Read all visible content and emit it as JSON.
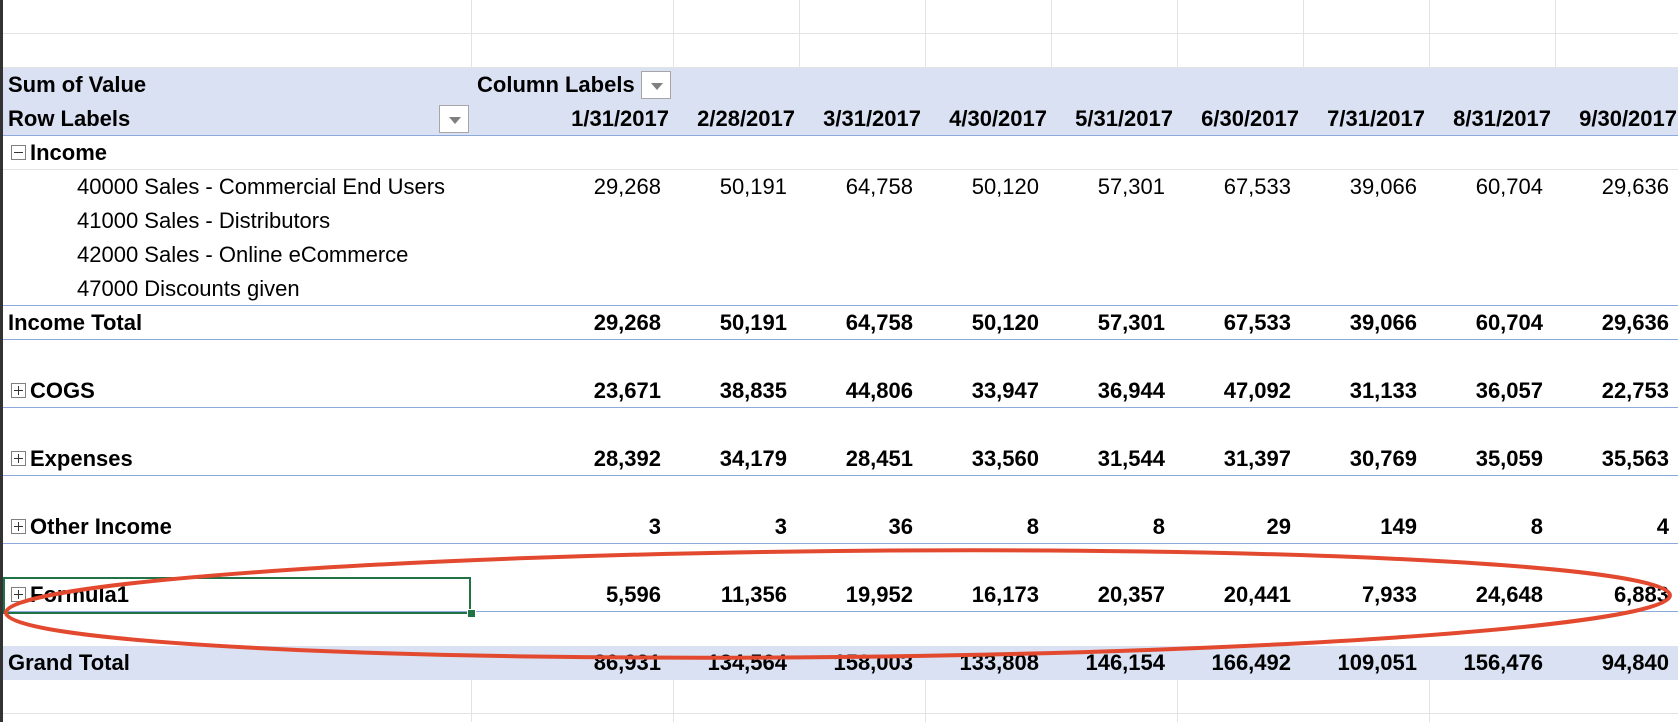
{
  "pivot": {
    "header": {
      "sum_label": "Sum of Value",
      "column_labels": "Column Labels",
      "row_labels": "Row Labels",
      "dates": [
        "1/31/2017",
        "2/28/2017",
        "3/31/2017",
        "4/30/2017",
        "5/31/2017",
        "6/30/2017",
        "7/31/2017",
        "8/31/2017",
        "9/30/2017"
      ]
    },
    "income": {
      "label": "Income",
      "children": [
        {
          "label": "40000 Sales - Commercial End Users",
          "values": [
            "29,268",
            "50,191",
            "64,758",
            "50,120",
            "57,301",
            "67,533",
            "39,066",
            "60,704",
            "29,636"
          ]
        },
        {
          "label": "41000 Sales - Distributors",
          "values": [
            "",
            "",
            "",
            "",
            "",
            "",
            "",
            "",
            ""
          ]
        },
        {
          "label": "42000 Sales - Online eCommerce",
          "values": [
            "",
            "",
            "",
            "",
            "",
            "",
            "",
            "",
            ""
          ]
        },
        {
          "label": "47000 Discounts given",
          "values": [
            "",
            "",
            "",
            "",
            "",
            "",
            "",
            "",
            ""
          ]
        }
      ],
      "total_label": "Income Total",
      "total_values": [
        "29,268",
        "50,191",
        "64,758",
        "50,120",
        "57,301",
        "67,533",
        "39,066",
        "60,704",
        "29,636"
      ]
    },
    "cogs": {
      "label": "COGS",
      "values": [
        "23,671",
        "38,835",
        "44,806",
        "33,947",
        "36,944",
        "47,092",
        "31,133",
        "36,057",
        "22,753"
      ]
    },
    "expenses": {
      "label": "Expenses",
      "values": [
        "28,392",
        "34,179",
        "28,451",
        "33,560",
        "31,544",
        "31,397",
        "30,769",
        "35,059",
        "35,563"
      ]
    },
    "other_income": {
      "label": "Other Income",
      "values": [
        "3",
        "3",
        "36",
        "8",
        "8",
        "29",
        "149",
        "8",
        "4"
      ]
    },
    "formula1": {
      "label": "Formula1",
      "values": [
        "5,596",
        "11,356",
        "19,952",
        "16,173",
        "20,357",
        "20,441",
        "7,933",
        "24,648",
        "6,883"
      ]
    },
    "grand_total": {
      "label": "Grand Total",
      "values": [
        "86,931",
        "134,564",
        "158,003",
        "133,808",
        "146,154",
        "166,492",
        "109,051",
        "156,476",
        "94,840"
      ]
    }
  },
  "colors": {
    "header_band": "#d9e1f2",
    "selection": "#217346",
    "annotation": "#e2492f"
  }
}
